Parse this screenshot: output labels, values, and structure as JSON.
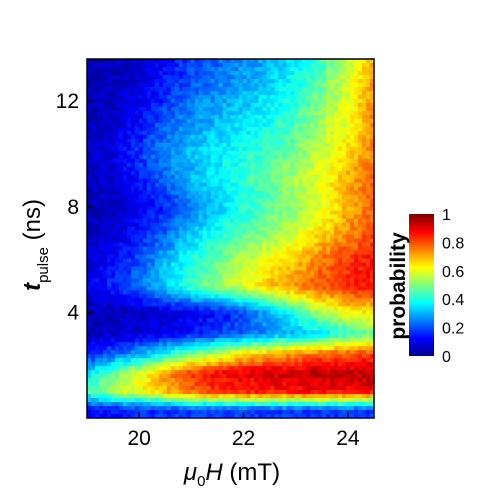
{
  "chart_data": {
    "type": "heatmap",
    "title": "",
    "x_label": {
      "symbol": "μ",
      "subscript": "0",
      "variable": "H",
      "unit": " (mT)"
    },
    "y_label": {
      "variable": "t",
      "subscript": "pulse",
      "unit": " (ns)"
    },
    "xlim": [
      19.0,
      24.5
    ],
    "ylim": [
      0.0,
      13.6
    ],
    "x_ticks": [
      20,
      22,
      24
    ],
    "y_ticks": [
      4,
      8,
      12
    ],
    "colorbar": {
      "title": "probability",
      "range": [
        0,
        1
      ],
      "ticks": [
        "0",
        "0.2",
        "0.4",
        "0.6",
        "0.8",
        "1"
      ],
      "colormap": [
        "#00008f",
        "#0000ff",
        "#0080ff",
        "#00ffff",
        "#80ff80",
        "#ffff00",
        "#ff8000",
        "#ff0000",
        "#800000"
      ]
    },
    "description_grid": {
      "x": [
        19.0,
        19.5,
        20.0,
        20.5,
        21.0,
        21.5,
        22.0,
        22.5,
        23.0,
        23.5,
        24.0,
        24.5
      ],
      "y": [
        0.3,
        1.0,
        1.7,
        2.4,
        3.2,
        4.0,
        5.0,
        6.0,
        7.0,
        8.0,
        9.0,
        10.0,
        11.0,
        12.0,
        13.0,
        13.6
      ],
      "z": [
        [
          0.12,
          0.14,
          0.16,
          0.17,
          0.18,
          0.18,
          0.18,
          0.18,
          0.18,
          0.18,
          0.18,
          0.18
        ],
        [
          0.45,
          0.55,
          0.62,
          0.7,
          0.78,
          0.82,
          0.85,
          0.86,
          0.87,
          0.88,
          0.88,
          0.88
        ],
        [
          0.35,
          0.48,
          0.6,
          0.72,
          0.82,
          0.88,
          0.9,
          0.92,
          0.93,
          0.94,
          0.94,
          0.94
        ],
        [
          0.15,
          0.22,
          0.3,
          0.4,
          0.5,
          0.58,
          0.65,
          0.7,
          0.74,
          0.78,
          0.8,
          0.82
        ],
        [
          0.05,
          0.06,
          0.08,
          0.1,
          0.14,
          0.18,
          0.22,
          0.26,
          0.3,
          0.36,
          0.42,
          0.48
        ],
        [
          0.04,
          0.05,
          0.06,
          0.08,
          0.1,
          0.14,
          0.2,
          0.3,
          0.42,
          0.55,
          0.62,
          0.66
        ],
        [
          0.1,
          0.16,
          0.24,
          0.34,
          0.44,
          0.52,
          0.6,
          0.68,
          0.74,
          0.8,
          0.84,
          0.86
        ],
        [
          0.08,
          0.12,
          0.2,
          0.3,
          0.4,
          0.48,
          0.56,
          0.62,
          0.68,
          0.76,
          0.82,
          0.86
        ],
        [
          0.05,
          0.08,
          0.14,
          0.22,
          0.32,
          0.4,
          0.46,
          0.52,
          0.58,
          0.66,
          0.74,
          0.8
        ],
        [
          0.04,
          0.06,
          0.1,
          0.16,
          0.24,
          0.32,
          0.4,
          0.46,
          0.52,
          0.6,
          0.7,
          0.78
        ],
        [
          0.05,
          0.08,
          0.14,
          0.22,
          0.3,
          0.36,
          0.42,
          0.48,
          0.54,
          0.62,
          0.7,
          0.78
        ],
        [
          0.06,
          0.1,
          0.18,
          0.26,
          0.32,
          0.36,
          0.4,
          0.44,
          0.5,
          0.58,
          0.66,
          0.76
        ],
        [
          0.05,
          0.08,
          0.14,
          0.22,
          0.28,
          0.32,
          0.36,
          0.4,
          0.46,
          0.54,
          0.62,
          0.74
        ],
        [
          0.04,
          0.06,
          0.1,
          0.18,
          0.24,
          0.28,
          0.32,
          0.36,
          0.42,
          0.5,
          0.6,
          0.74
        ],
        [
          0.04,
          0.05,
          0.08,
          0.14,
          0.2,
          0.24,
          0.28,
          0.32,
          0.38,
          0.46,
          0.58,
          0.72
        ],
        [
          0.04,
          0.05,
          0.07,
          0.12,
          0.18,
          0.22,
          0.26,
          0.3,
          0.36,
          0.44,
          0.56,
          0.7
        ]
      ]
    }
  }
}
